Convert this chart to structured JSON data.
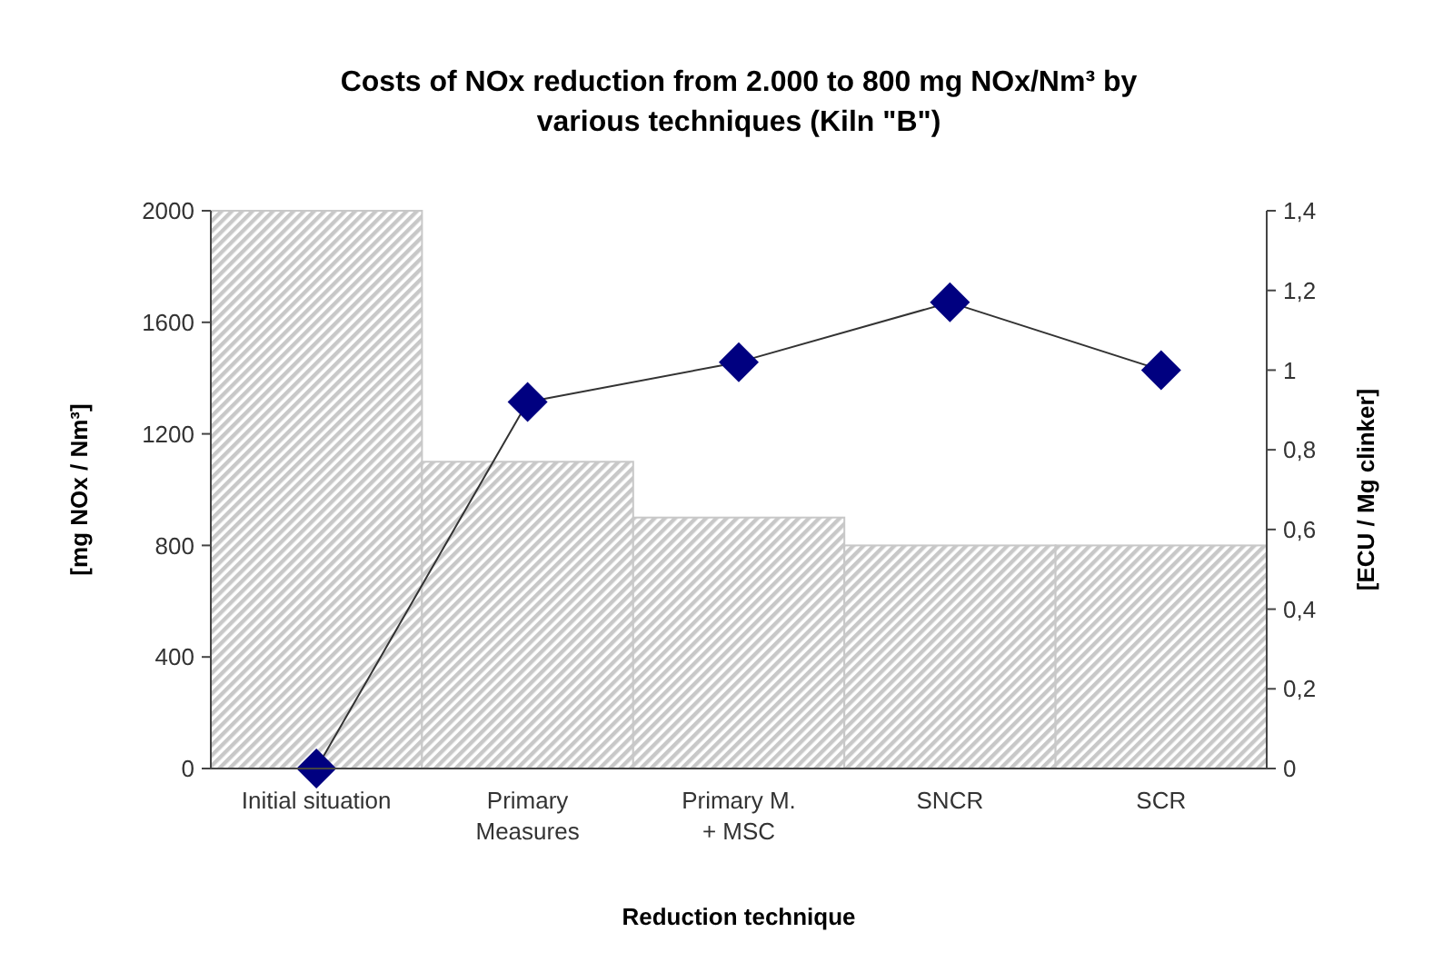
{
  "chart_data": {
    "type": "bar",
    "title": "Costs of NOx reduction from 2.000 to 800 mg NOx/Nm³ by various techniques (Kiln \"B\")",
    "xlabel": "Reduction technique",
    "ylabel": "[mg NOx / Nm³]",
    "y2label": "[ECU / Mg clinker]",
    "categories": [
      "Initial situation",
      "Primary Measures",
      "Primary M. + MSC",
      "SNCR",
      "SCR"
    ],
    "series": [
      {
        "color": "#c8c8c8",
        "values": [
          2000,
          1100,
          900,
          800,
          800
        ]
      },
      {
        "type": "line",
        "axis": "y2",
        "color": "#000080",
        "marker": "diamond",
        "values": [
          0,
          0.92,
          1.02,
          1.17,
          1.0
        ]
      }
    ],
    "ylim": [
      0,
      2000
    ],
    "yticks": [
      0,
      400,
      800,
      1200,
      1600,
      2000
    ],
    "y2lim": [
      0,
      1.4
    ],
    "y2ticks": [
      {
        "value": 0,
        "label": "0"
      },
      {
        "value": 0.2,
        "label": "0,2"
      },
      {
        "value": 0.4,
        "label": "0,4"
      },
      {
        "value": 0.6,
        "label": "0,6"
      },
      {
        "value": 0.8,
        "label": "0,8"
      },
      {
        "value": 1,
        "label": "1"
      },
      {
        "value": 1.2,
        "label": "1,2"
      },
      {
        "value": 1.4,
        "label": "1,4"
      }
    ],
    "grid": false
  }
}
